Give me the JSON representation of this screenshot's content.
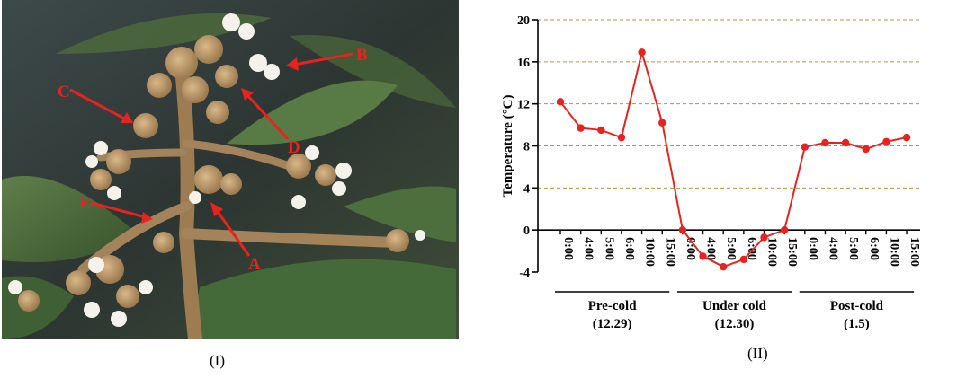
{
  "figure": {
    "panel_left_caption": "(I)",
    "panel_right_caption": "(II)"
  },
  "photo": {
    "subject": "loquat flower panicle",
    "labels": [
      "A",
      "B",
      "C",
      "D",
      "E"
    ],
    "annotation_color": "#e8231f"
  },
  "chart_data": {
    "type": "line",
    "title": "",
    "ylabel": "Temperature (°C)",
    "ylim": [
      -4,
      20
    ],
    "yticks": [
      -4,
      0,
      4,
      8,
      12,
      16,
      20
    ],
    "grid": true,
    "grid_style": "dashed horizontal olive",
    "series_color": "#e8231f",
    "categories": [
      "0:00",
      "4:00",
      "5:00",
      "6:00",
      "10:00",
      "15:00",
      "0:00",
      "4:00",
      "5:00",
      "6:00",
      "10:00",
      "15:00",
      "0:00",
      "4:00",
      "5:00",
      "6:00",
      "10:00",
      "15:00"
    ],
    "series": [
      {
        "values": [
          12.2,
          9.7,
          9.5,
          8.8,
          16.9,
          10.2,
          0,
          -2.5,
          -3.5,
          -2.8,
          -0.7,
          0,
          7.9,
          8.3,
          8.3,
          7.7,
          8.4,
          8.8
        ]
      }
    ],
    "groups": [
      {
        "label": "Pre-cold",
        "date": "(12.29)",
        "start": 0,
        "end": 5
      },
      {
        "label": "Under cold",
        "date": "(12.30)",
        "start": 6,
        "end": 11
      },
      {
        "label": "Post-cold",
        "date": "(1.5)",
        "start": 12,
        "end": 17
      }
    ]
  }
}
